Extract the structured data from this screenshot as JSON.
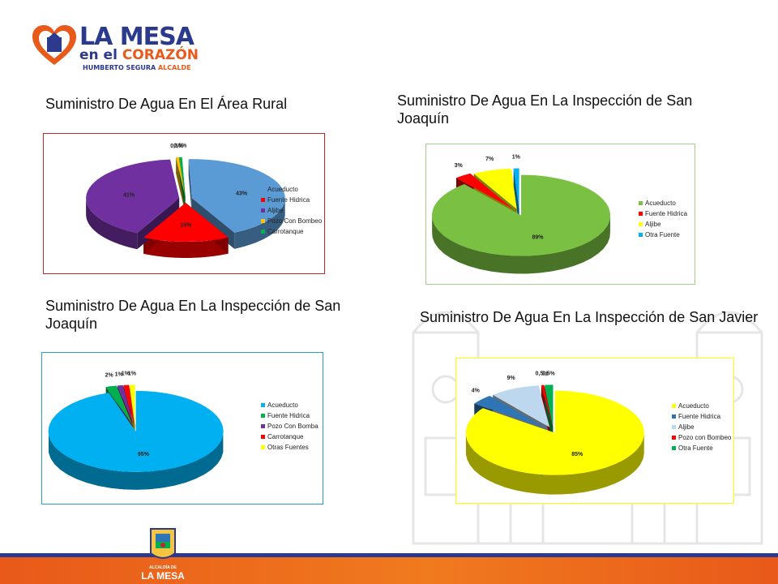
{
  "logo": {
    "line1": "LA MESA",
    "line2a": "en el ",
    "line2b": "CORAZÓN",
    "line3a": "HUMBERTO SEGURA ",
    "line3b": "ALCALDE"
  },
  "footer": {
    "line1": "ALCALDÍA DE",
    "line2": "LA MESA"
  },
  "titles": {
    "t1": "Suministro De Agua En El Área Rural",
    "t2": "Suministro De Agua En La Inspección de San Joaquín",
    "t3": "Suministro De Agua En La Inspección de San Joaquín",
    "t4": "Suministro De Agua En La Inspección de San Javier"
  },
  "chart_data": [
    {
      "type": "pie",
      "categories": [
        "Acueducto",
        "Fuente Hidrica",
        "Aljibe",
        "Pozo Con Bombeo",
        "Carrotanque"
      ],
      "values": [
        43,
        15,
        41,
        0.5,
        0.5
      ],
      "labels": [
        "43%",
        "15%",
        "41%",
        "0,5%",
        "0,5%"
      ],
      "colors": [
        "#5b9bd5",
        "#ff0000",
        "#7030a0",
        "#ffc000",
        "#00b050"
      ],
      "border": "#c0272d",
      "legend": "right"
    },
    {
      "type": "pie",
      "categories": [
        "Acueducto",
        "Fuente Hidrica",
        "Aljibe",
        "Otra Fuente"
      ],
      "values": [
        89,
        3,
        7,
        1
      ],
      "labels": [
        "89%",
        "3%",
        "7%",
        "1%"
      ],
      "colors": [
        "#7ac143",
        "#ff0000",
        "#ffff00",
        "#00b0f0"
      ],
      "border": "#a8d08d",
      "legend": "right"
    },
    {
      "type": "pie",
      "categories": [
        "Acueducto",
        "Fuente Hidrica",
        "Pozo Con Bomba",
        "Carrotanque",
        "Otras Fuentes"
      ],
      "values": [
        95,
        2,
        1,
        1,
        1
      ],
      "labels": [
        "95%",
        "2%",
        "1%",
        "1%",
        "1%"
      ],
      "colors": [
        "#00b0f0",
        "#00b050",
        "#7030a0",
        "#ff0000",
        "#ffff00"
      ],
      "border": "#2e9cca",
      "legend": "right"
    },
    {
      "type": "pie",
      "categories": [
        "Acueducto",
        "Fuente Hidrica",
        "Aljibe",
        "Pozo con Bombeo",
        "Otra Fuente"
      ],
      "values": [
        85,
        4,
        9,
        0.5,
        1.5
      ],
      "labels": [
        "85%",
        "4%",
        "9%",
        "0,5%",
        "1,5%"
      ],
      "colors": [
        "#ffff00",
        "#2e75b6",
        "#bdd7ee",
        "#ff0000",
        "#00b050"
      ],
      "border": "#ffff00",
      "legend": "right"
    }
  ]
}
